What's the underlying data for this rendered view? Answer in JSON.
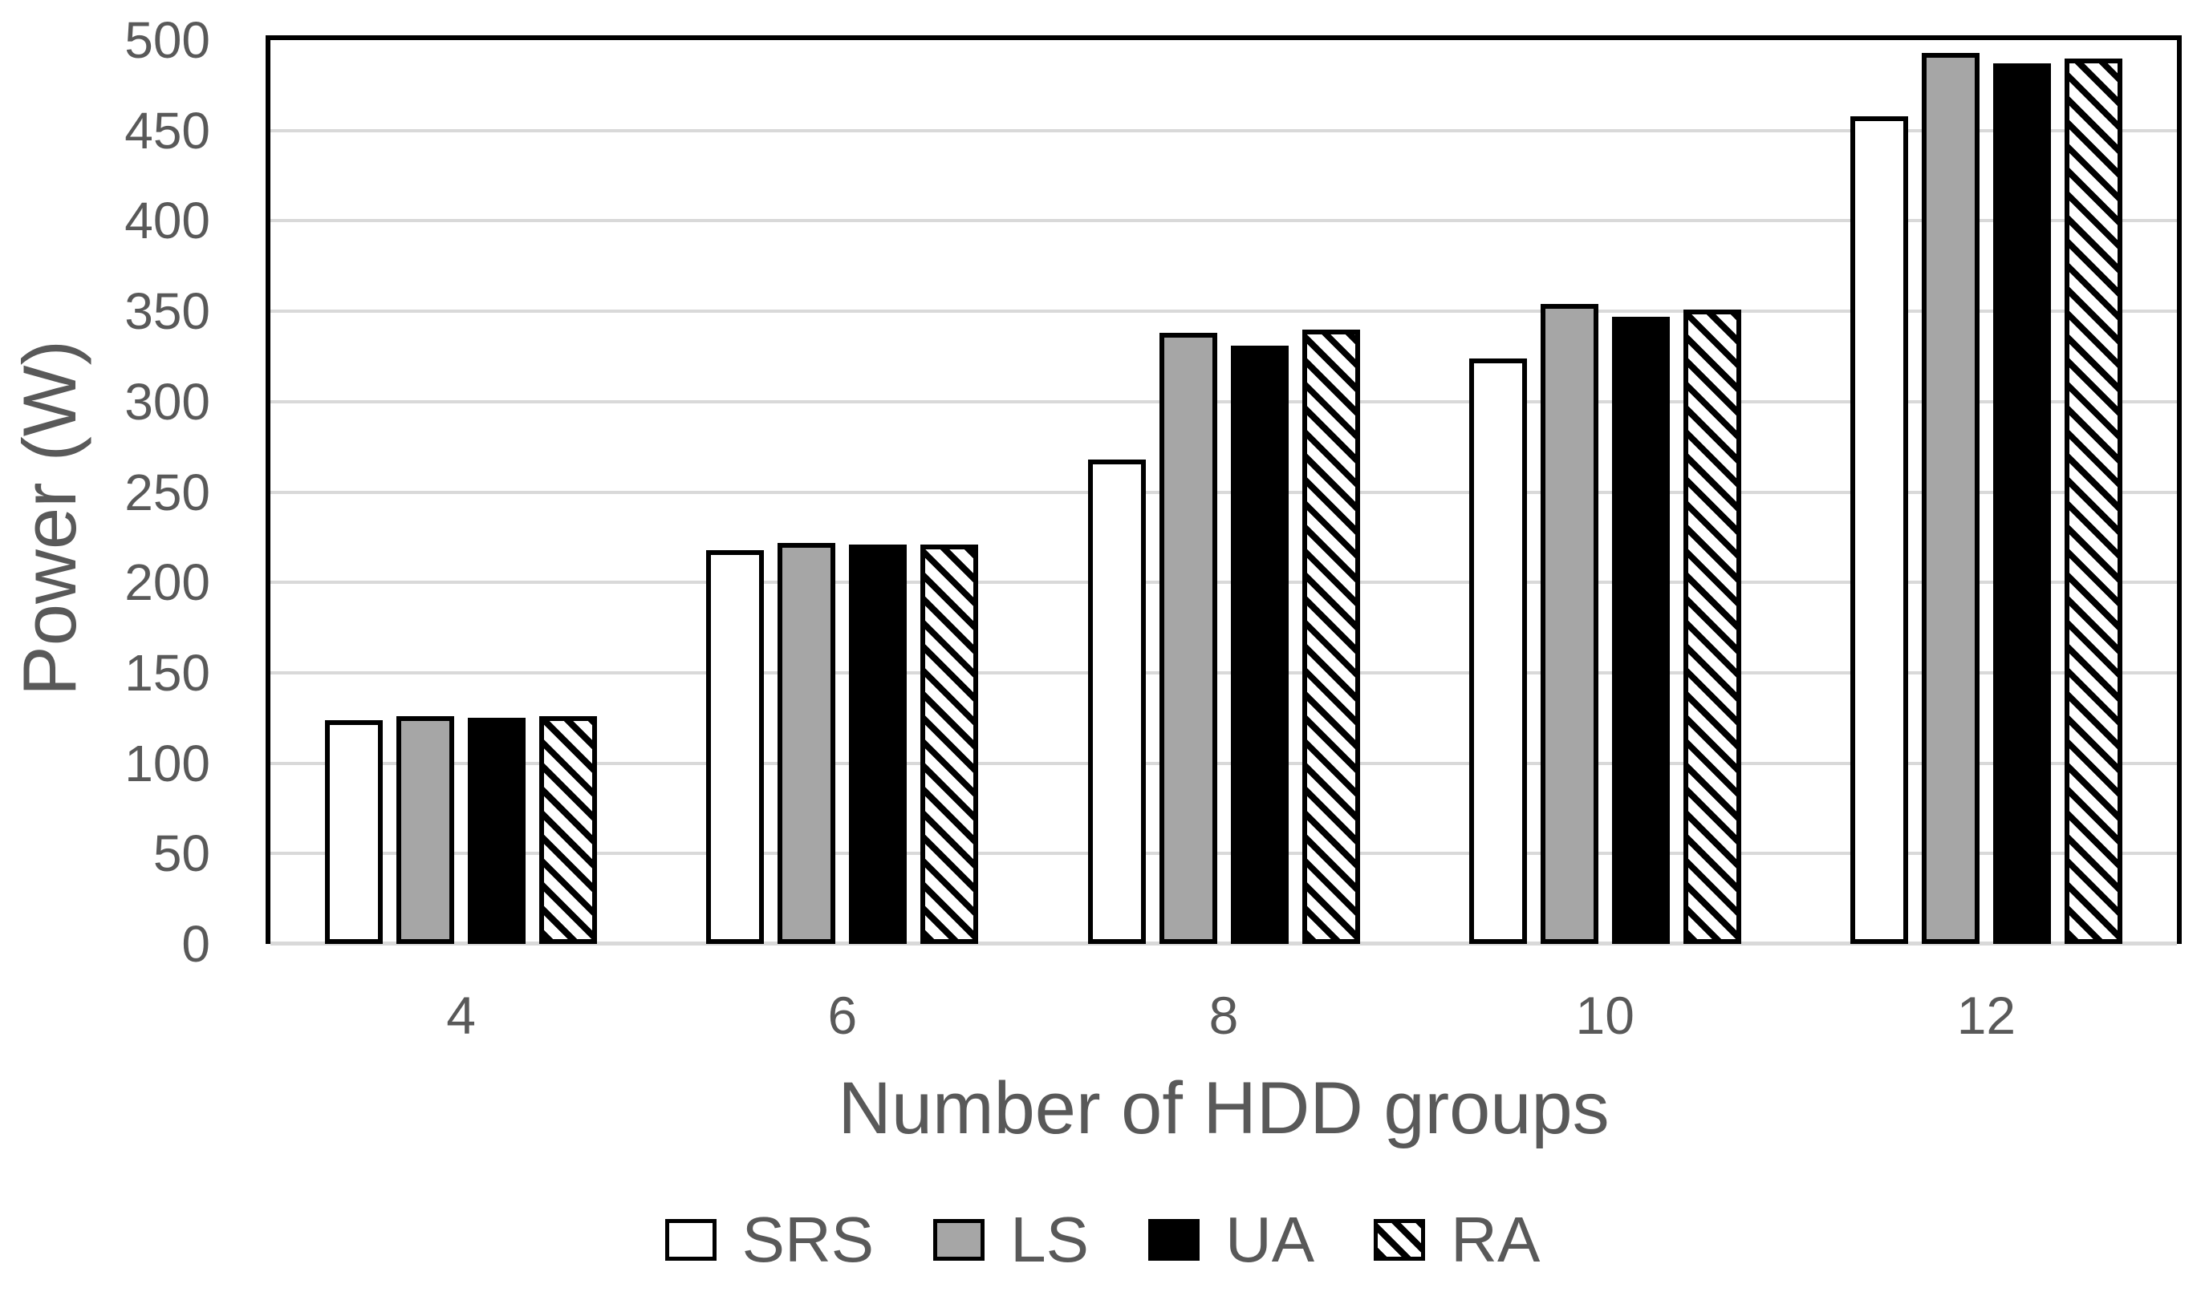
{
  "chart_data": {
    "type": "bar",
    "categories": [
      "4",
      "6",
      "8",
      "10",
      "12"
    ],
    "series": [
      {
        "name": "SRS",
        "style": "white",
        "values": [
          124,
          218,
          268,
          324,
          458
        ]
      },
      {
        "name": "LS",
        "style": "gray",
        "values": [
          126,
          222,
          338,
          354,
          493
        ]
      },
      {
        "name": "UA",
        "style": "black",
        "values": [
          125,
          221,
          331,
          347,
          487
        ]
      },
      {
        "name": "RA",
        "style": "hatch",
        "values": [
          126,
          221,
          340,
          351,
          490
        ]
      }
    ],
    "xlabel": "Number of HDD groups",
    "ylabel": "Power (W)",
    "ylim": [
      0,
      500
    ],
    "ytick_step": 50,
    "yticks": [
      "0",
      "50",
      "100",
      "150",
      "200",
      "250",
      "300",
      "350",
      "400",
      "450",
      "500"
    ],
    "grid": true,
    "legend_position": "bottom",
    "legend": [
      "SRS",
      "LS",
      "UA",
      "RA"
    ]
  },
  "colors": {
    "text": "#595959",
    "gridline": "#d9d9d9",
    "bar_border": "#000000",
    "gray_fill": "#a6a6a6",
    "background": "#ffffff"
  }
}
